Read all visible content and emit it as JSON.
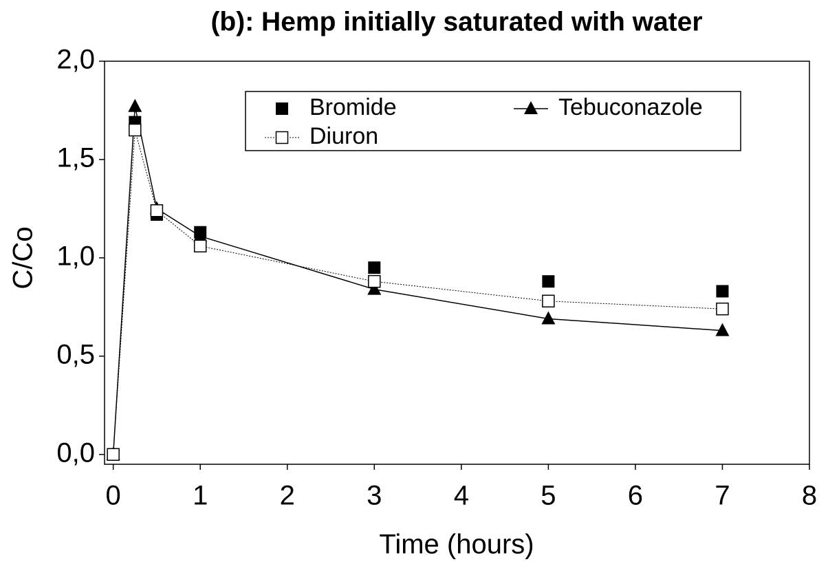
{
  "chart_data": {
    "type": "line",
    "title": "(b): Hemp initially saturated with water",
    "x_label": "Time (hours)",
    "y_label": "C/Co",
    "x": [
      0,
      0.25,
      0.5,
      1,
      3,
      5,
      7
    ],
    "series": [
      {
        "name": "Bromide",
        "color": "#000000",
        "marker": "square-filled",
        "line": "none",
        "values": [
          0,
          1.69,
          1.22,
          1.13,
          0.95,
          0.88,
          0.83
        ]
      },
      {
        "name": "Tebuconazole",
        "color": "#000000",
        "marker": "triangle-filled",
        "line": "solid",
        "values": [
          0,
          1.77,
          1.25,
          1.11,
          0.84,
          0.69,
          0.63
        ]
      },
      {
        "name": "Diuron",
        "color": "#000000",
        "marker": "square-open",
        "line": "dotted",
        "values": [
          0,
          1.65,
          1.24,
          1.06,
          0.88,
          0.78,
          0.74
        ]
      }
    ],
    "xlim": [
      -0.1,
      8
    ],
    "xticks": [
      0,
      1,
      2,
      3,
      4,
      5,
      6,
      7,
      8
    ],
    "ylim": [
      -0.05,
      2.0
    ],
    "yticks": [
      {
        "value": 0,
        "label": "0,0"
      },
      {
        "value": 0.5,
        "label": "0,5"
      },
      {
        "value": 1.0,
        "label": "1,0"
      },
      {
        "value": 1.5,
        "label": "1,5"
      },
      {
        "value": 2.0,
        "label": "2,0"
      }
    ],
    "grid": false,
    "legend": "top"
  }
}
